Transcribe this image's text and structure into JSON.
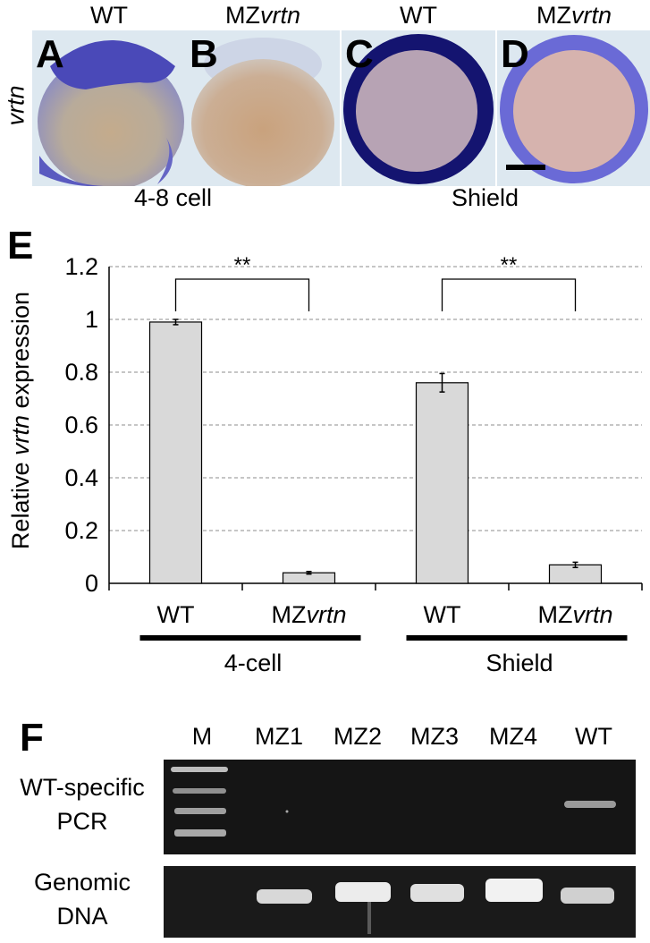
{
  "row_label": "vrtn",
  "columns": [
    {
      "prefix": "WT",
      "italic": ""
    },
    {
      "prefix": "MZ",
      "italic": "vrtn"
    },
    {
      "prefix": "WT",
      "italic": ""
    },
    {
      "prefix": "MZ",
      "italic": "vrtn"
    }
  ],
  "panels": [
    {
      "letter": "A"
    },
    {
      "letter": "B"
    },
    {
      "letter": "C"
    },
    {
      "letter": "D"
    }
  ],
  "stages": {
    "left": "4-8 cell",
    "right": "Shield"
  },
  "panel_e_letter": "E",
  "panel_f_letter": "F",
  "chart_data": {
    "type": "bar",
    "ylabel_prefix": "Relative ",
    "ylabel_italic": "vrtn",
    "ylabel_suffix": " expression",
    "ylim": [
      0,
      1.2
    ],
    "yticks": [
      "0",
      "0.2",
      "0.4",
      "0.6",
      "0.8",
      "1",
      "1.2"
    ],
    "grid": true,
    "bars": [
      {
        "label": "WT",
        "label_italic": "",
        "value": 0.99,
        "error": 0.01
      },
      {
        "label": "MZ",
        "label_italic": "vrtn",
        "value": 0.04,
        "error": 0.005
      },
      {
        "label": "WT",
        "label_italic": "",
        "value": 0.76,
        "error": 0.035
      },
      {
        "label": "MZ",
        "label_italic": "vrtn",
        "value": 0.07,
        "error": 0.01
      }
    ],
    "groups": [
      "4-cell",
      "Shield"
    ],
    "significance": [
      "**",
      "**"
    ]
  },
  "gel": {
    "lanes": [
      "M",
      "MZ1",
      "MZ2",
      "MZ3",
      "MZ4",
      "WT"
    ],
    "row1_label_line1": "WT-specific",
    "row1_label_line2": "PCR",
    "row2_label_line1": "Genomic",
    "row2_label_line2": "DNA"
  }
}
